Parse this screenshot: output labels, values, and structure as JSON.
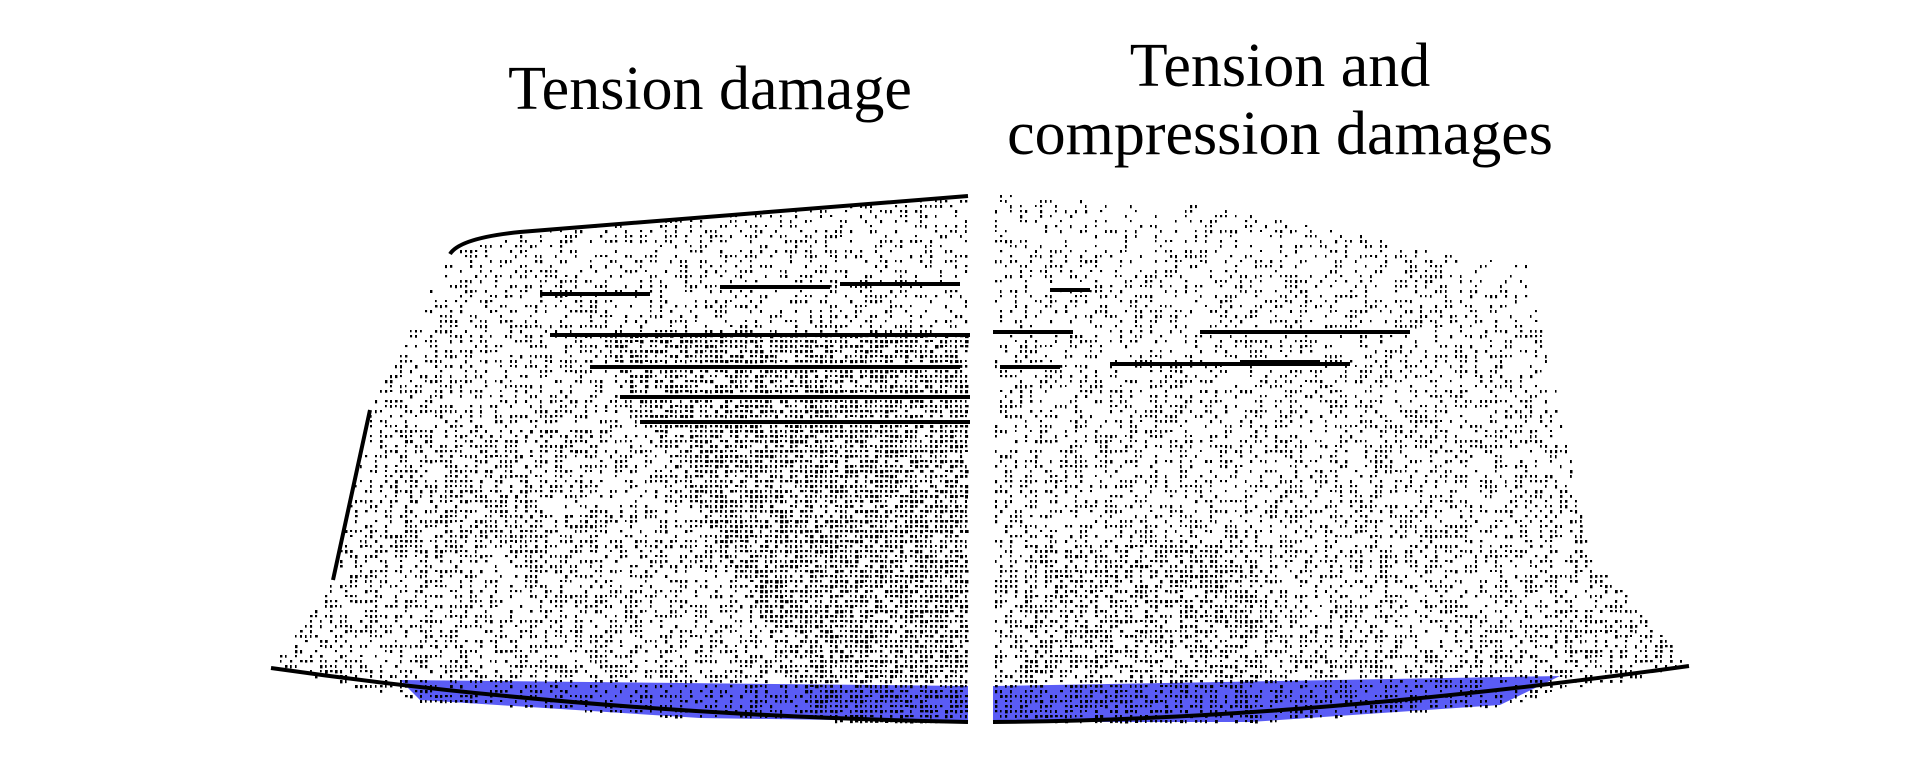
{
  "panels": [
    {
      "title": "Tension damage",
      "side": "left"
    },
    {
      "title_line1": "Tension and",
      "title_line2": "compression damages",
      "side": "right"
    }
  ],
  "colors": {
    "particle": "#000000",
    "damaged_base": "#5a5cf5",
    "background": "#ffffff"
  }
}
